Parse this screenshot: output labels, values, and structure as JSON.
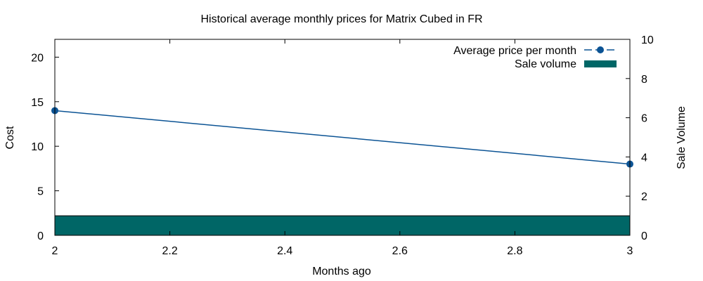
{
  "chart_data": {
    "type": "line",
    "title": "Historical average monthly prices for Matrix Cubed in FR",
    "xlabel": "Months ago",
    "ylabel": "Cost",
    "y2label": "Sale Volume",
    "xlim": [
      2,
      3
    ],
    "ylim": [
      0,
      22
    ],
    "y2lim": [
      0,
      10
    ],
    "x_ticks": [
      2,
      2.2,
      2.4,
      2.6,
      2.8,
      3
    ],
    "x_tick_labels": [
      "2",
      "2.2",
      "2.4",
      "2.6",
      "2.8",
      "3"
    ],
    "y_ticks": [
      0,
      5,
      10,
      15,
      20
    ],
    "y_tick_labels": [
      "0",
      "5",
      "10",
      "15",
      "20"
    ],
    "y2_ticks": [
      0,
      2,
      4,
      6,
      8,
      10
    ],
    "y2_tick_labels": [
      "0",
      "2",
      "4",
      "6",
      "8",
      "10"
    ],
    "grid": false,
    "legend_position": "top-right",
    "series": [
      {
        "name": "Average price per month",
        "kind": "line",
        "axis": "y",
        "color": "#0b5394",
        "x": [
          2,
          3
        ],
        "values": [
          14,
          8
        ]
      },
      {
        "name": "Sale volume",
        "kind": "bar",
        "axis": "y2",
        "color": "#006666",
        "x": [
          2,
          3
        ],
        "values": [
          1,
          1
        ]
      }
    ]
  }
}
